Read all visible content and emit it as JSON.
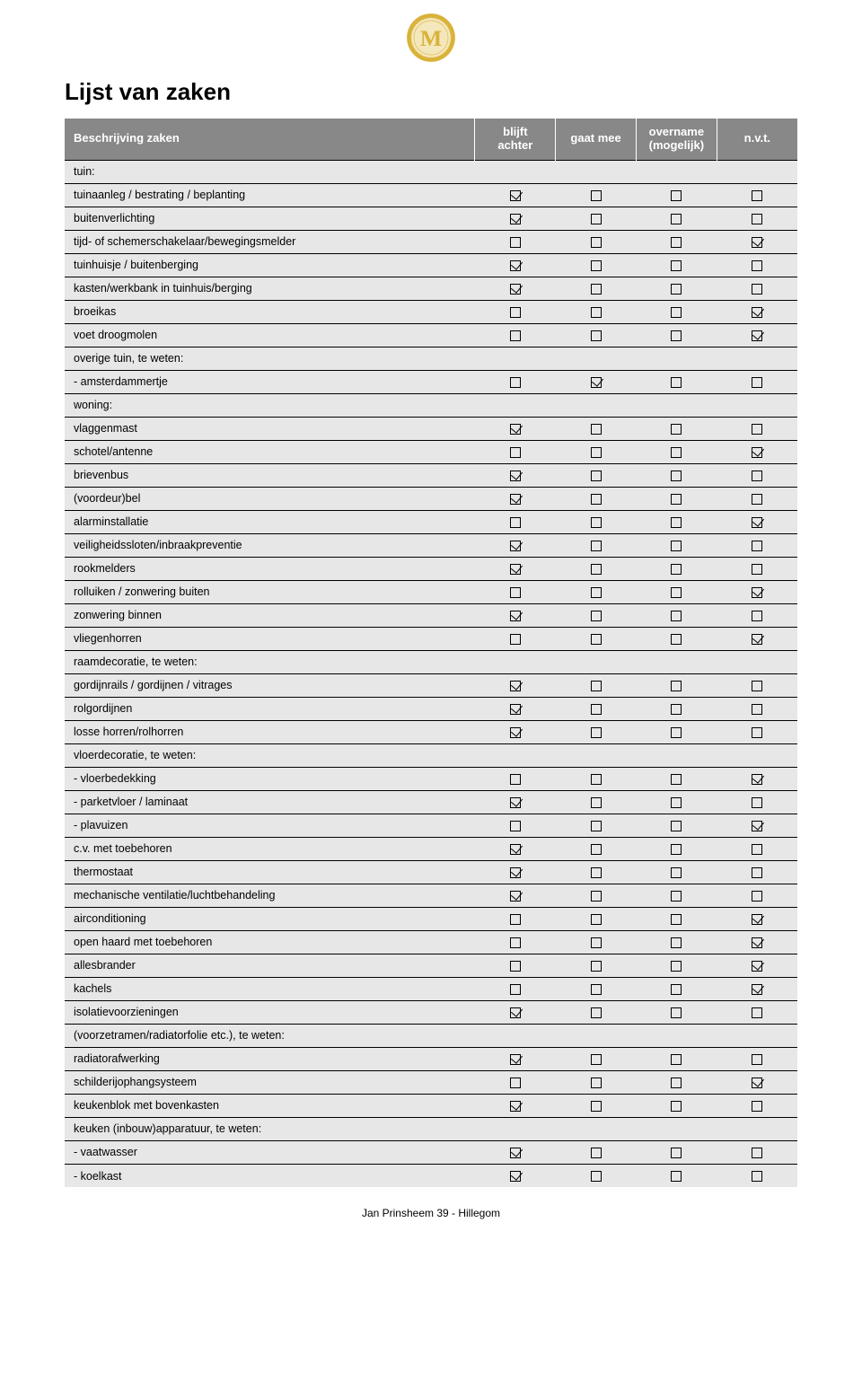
{
  "logo_letter": "M",
  "title": "Lijst van zaken",
  "header": {
    "desc": "Beschrijving zaken",
    "c1": "blijft achter",
    "c2": "gaat mee",
    "c3": "overname (mogelijk)",
    "c4": "n.v.t."
  },
  "rows": [
    {
      "type": "section",
      "label": "tuin:"
    },
    {
      "type": "item",
      "label": "tuinaanleg / bestrating / beplanting",
      "v": [
        true,
        false,
        false,
        false
      ]
    },
    {
      "type": "item",
      "label": "buitenverlichting",
      "v": [
        true,
        false,
        false,
        false
      ]
    },
    {
      "type": "item",
      "label": "tijd- of schemerschakelaar/bewegingsmelder",
      "v": [
        false,
        false,
        false,
        true
      ]
    },
    {
      "type": "item",
      "label": "tuinhuisje / buitenberging",
      "v": [
        true,
        false,
        false,
        false
      ]
    },
    {
      "type": "item",
      "label": "kasten/werkbank in tuinhuis/berging",
      "v": [
        true,
        false,
        false,
        false
      ]
    },
    {
      "type": "item",
      "label": "broeikas",
      "v": [
        false,
        false,
        false,
        true
      ]
    },
    {
      "type": "item",
      "label": "voet droogmolen",
      "v": [
        false,
        false,
        false,
        true
      ]
    },
    {
      "type": "section",
      "label": "overige tuin, te weten:"
    },
    {
      "type": "item",
      "label": "- amsterdammertje",
      "v": [
        false,
        true,
        false,
        false
      ]
    },
    {
      "type": "section",
      "label": "woning:"
    },
    {
      "type": "item",
      "label": "vlaggenmast",
      "v": [
        true,
        false,
        false,
        false
      ]
    },
    {
      "type": "item",
      "label": "schotel/antenne",
      "v": [
        false,
        false,
        false,
        true
      ]
    },
    {
      "type": "item",
      "label": "brievenbus",
      "v": [
        true,
        false,
        false,
        false
      ]
    },
    {
      "type": "item",
      "label": "(voordeur)bel",
      "v": [
        true,
        false,
        false,
        false
      ]
    },
    {
      "type": "item",
      "label": "alarminstallatie",
      "v": [
        false,
        false,
        false,
        true
      ]
    },
    {
      "type": "item",
      "label": "veiligheidssloten/inbraakpreventie",
      "v": [
        true,
        false,
        false,
        false
      ]
    },
    {
      "type": "item",
      "label": "rookmelders",
      "v": [
        true,
        false,
        false,
        false
      ]
    },
    {
      "type": "item",
      "label": "rolluiken / zonwering buiten",
      "v": [
        false,
        false,
        false,
        true
      ]
    },
    {
      "type": "item",
      "label": "zonwering binnen",
      "v": [
        true,
        false,
        false,
        false
      ]
    },
    {
      "type": "item",
      "label": "vliegenhorren",
      "v": [
        false,
        false,
        false,
        true
      ]
    },
    {
      "type": "section",
      "label": "raamdecoratie, te weten:"
    },
    {
      "type": "item",
      "label": "gordijnrails / gordijnen / vitrages",
      "v": [
        true,
        false,
        false,
        false
      ]
    },
    {
      "type": "item",
      "label": "rolgordijnen",
      "v": [
        true,
        false,
        false,
        false
      ]
    },
    {
      "type": "item",
      "label": "losse horren/rolhorren",
      "v": [
        true,
        false,
        false,
        false
      ]
    },
    {
      "type": "section",
      "label": "vloerdecoratie, te weten:"
    },
    {
      "type": "item",
      "label": "- vloerbedekking",
      "v": [
        false,
        false,
        false,
        true
      ]
    },
    {
      "type": "item",
      "label": "- parketvloer / laminaat",
      "v": [
        true,
        false,
        false,
        false
      ]
    },
    {
      "type": "item",
      "label": "- plavuizen",
      "v": [
        false,
        false,
        false,
        true
      ]
    },
    {
      "type": "item",
      "label": "c.v. met toebehoren",
      "v": [
        true,
        false,
        false,
        false
      ]
    },
    {
      "type": "item",
      "label": "thermostaat",
      "v": [
        true,
        false,
        false,
        false
      ]
    },
    {
      "type": "item",
      "label": "mechanische ventilatie/luchtbehandeling",
      "v": [
        true,
        false,
        false,
        false
      ]
    },
    {
      "type": "item",
      "label": "airconditioning",
      "v": [
        false,
        false,
        false,
        true
      ]
    },
    {
      "type": "item",
      "label": "open haard met toebehoren",
      "v": [
        false,
        false,
        false,
        true
      ]
    },
    {
      "type": "item",
      "label": "allesbrander",
      "v": [
        false,
        false,
        false,
        true
      ]
    },
    {
      "type": "item",
      "label": "kachels",
      "v": [
        false,
        false,
        false,
        true
      ]
    },
    {
      "type": "item",
      "label": "isolatievoorzieningen",
      "v": [
        true,
        false,
        false,
        false
      ]
    },
    {
      "type": "section",
      "label": "(voorzetramen/radiatorfolie etc.), te weten:"
    },
    {
      "type": "item",
      "label": "radiatorafwerking",
      "v": [
        true,
        false,
        false,
        false
      ]
    },
    {
      "type": "item",
      "label": "schilderijophangsysteem",
      "v": [
        false,
        false,
        false,
        true
      ]
    },
    {
      "type": "item",
      "label": "keukenblok met bovenkasten",
      "v": [
        true,
        false,
        false,
        false
      ]
    },
    {
      "type": "section",
      "label": "keuken (inbouw)apparatuur, te weten:"
    },
    {
      "type": "item",
      "label": "- vaatwasser",
      "v": [
        true,
        false,
        false,
        false
      ]
    },
    {
      "type": "item",
      "label": "- koelkast",
      "v": [
        true,
        false,
        false,
        false
      ]
    }
  ],
  "footer": "Jan Prinsheem 39 - Hillegom",
  "colors": {
    "header_bg": "#888888",
    "header_fg": "#ffffff",
    "row_bg": "#e7e7e7",
    "border": "#000000",
    "logo_gold": "#d9b23a",
    "logo_inner": "#f4e7bb"
  }
}
